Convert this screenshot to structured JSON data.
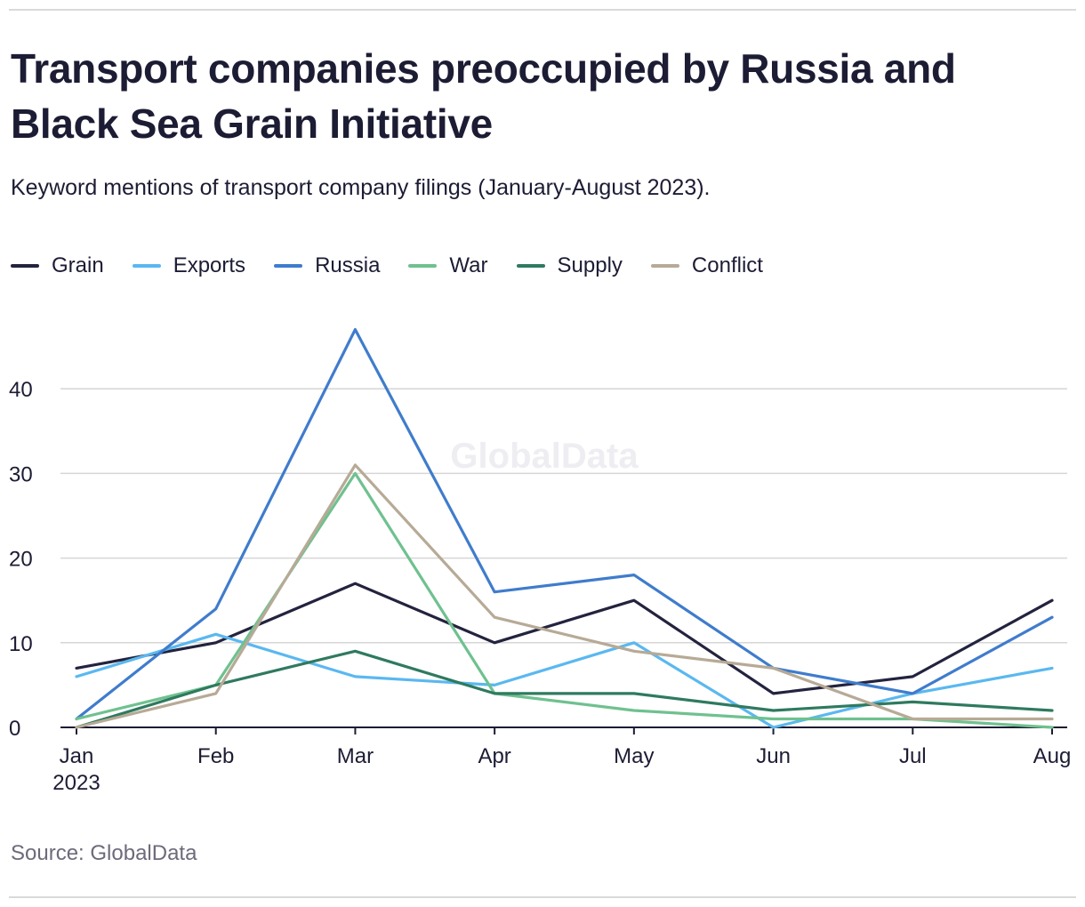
{
  "header": {
    "title": "Transport companies preoccupied by Russia and Black Sea Grain Initiative",
    "subtitle": "Keyword mentions of transport company filings (January-August 2023)."
  },
  "footer": {
    "source": "Source: GlobalData"
  },
  "watermark": "GlobalData",
  "chart_data": {
    "type": "line",
    "title": "Transport companies preoccupied by Russia and Black Sea Grain Initiative",
    "subtitle": "Keyword mentions of transport company filings (January-August 2023).",
    "xlabel": "",
    "ylabel": "",
    "categories": [
      "Jan",
      "Feb",
      "Mar",
      "Apr",
      "May",
      "Jun",
      "Jul",
      "Aug"
    ],
    "x_first_tick_sublabel": "2023",
    "ylim": [
      0,
      48
    ],
    "yticks": [
      0,
      10,
      20,
      30,
      40
    ],
    "grid": true,
    "legend_position": "top-left",
    "series": [
      {
        "name": "Grain",
        "color": "#23233f",
        "values": [
          7,
          10,
          17,
          10,
          15,
          4,
          6,
          15
        ]
      },
      {
        "name": "Exports",
        "color": "#5ab8f0",
        "values": [
          6,
          11,
          6,
          5,
          10,
          0,
          4,
          7
        ]
      },
      {
        "name": "Russia",
        "color": "#3f7ccc",
        "values": [
          1,
          14,
          47,
          16,
          18,
          7,
          4,
          13
        ]
      },
      {
        "name": "War",
        "color": "#6fc18f",
        "values": [
          1,
          5,
          30,
          4,
          2,
          1,
          1,
          0
        ]
      },
      {
        "name": "Supply",
        "color": "#2f7a5f",
        "values": [
          0,
          5,
          9,
          4,
          4,
          2,
          3,
          2
        ]
      },
      {
        "name": "Conflict",
        "color": "#b7aa96",
        "values": [
          0,
          4,
          31,
          13,
          9,
          7,
          1,
          1
        ]
      }
    ]
  }
}
